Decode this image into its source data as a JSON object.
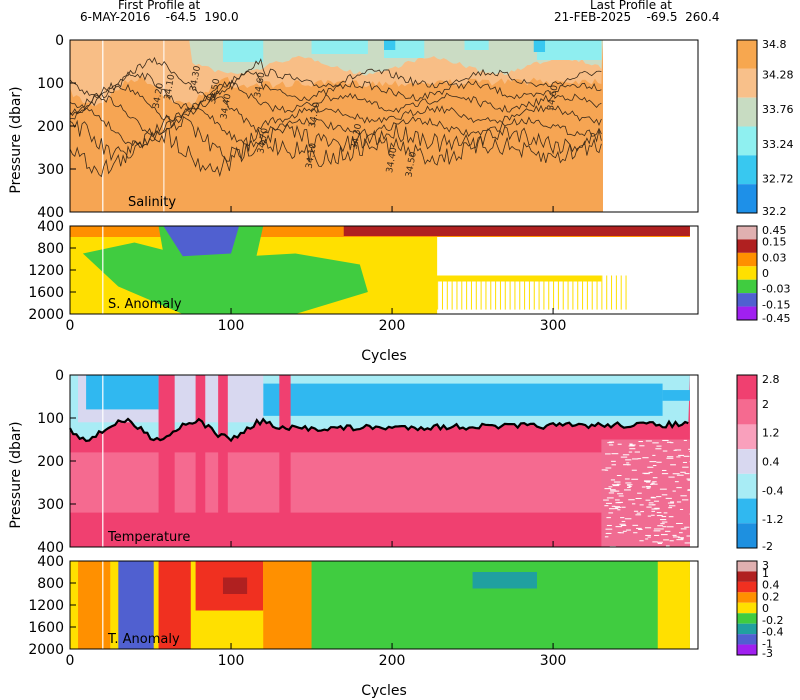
{
  "header": {
    "first_label": "First Profile at",
    "first_line": "6-MAY-2016    -64.5  190.0",
    "last_label": "Last Profile at",
    "last_line": "21-FEB-2025    -69.5  260.4"
  },
  "chart_data": [
    {
      "type": "heatmap",
      "panel": "Salinity",
      "inner_label": "Salinity",
      "ylabel": "Pressure (dbar)",
      "yticks": [
        0,
        100,
        200,
        300,
        400
      ],
      "ylim": [
        0,
        400
      ],
      "x_last_cycle": 331,
      "contour_labels": [
        "34.10",
        "34.20",
        "34.30",
        "34.40",
        "34.50",
        "34.60",
        "34.70"
      ],
      "colorbar": {
        "labels": [
          "34.8",
          "34.28",
          "33.76",
          "33.24",
          "32.72",
          "32.2"
        ],
        "colors": [
          "#f7a74f",
          "#f8c08a",
          "#c8dcc2",
          "#8ff0f0",
          "#38c8f0",
          "#1e90e8"
        ]
      }
    },
    {
      "type": "heatmap",
      "panel": "Salinity Anomaly",
      "inner_label": "S. Anomaly",
      "yticks": [
        400,
        800,
        1200,
        1600,
        2000
      ],
      "ylim": [
        400,
        2000
      ],
      "colorbar": {
        "labels": [
          "0.45",
          "0.15",
          "0.03",
          "0",
          "-0.03",
          "-0.15",
          "-0.45"
        ],
        "colors": [
          "#e0b0b0",
          "#b02020",
          "#ff9000",
          "#ffe000",
          "#40cc40",
          "#5060d0",
          "#a020f0"
        ]
      }
    },
    {
      "type": "heatmap",
      "panel": "Temperature",
      "inner_label": "Temperature",
      "ylabel": "Pressure (dbar)",
      "yticks": [
        0,
        100,
        200,
        300,
        400
      ],
      "ylim": [
        0,
        400
      ],
      "x_last_cycle": 385,
      "colorbar": {
        "labels": [
          "2.8",
          "2",
          "1.2",
          "0.4",
          "-0.4",
          "-1.2",
          "-2"
        ],
        "colors": [
          "#f04070",
          "#f56a90",
          "#f9a0bc",
          "#d8d8f0",
          "#a8ecf5",
          "#30b8f0",
          "#1e90e0"
        ]
      }
    },
    {
      "type": "heatmap",
      "panel": "Temperature Anomaly",
      "inner_label": "T. Anomaly",
      "xlabel": "Cycles",
      "yticks": [
        400,
        800,
        1200,
        1600,
        2000
      ],
      "ylim": [
        400,
        2000
      ],
      "colorbar": {
        "labels": [
          "3",
          "1",
          "0.4",
          "0.2",
          "0",
          "-0.2",
          "-0.4",
          "-1",
          "-3"
        ],
        "colors": [
          "#e0b0b0",
          "#b02020",
          "#f03020",
          "#ff9000",
          "#ffe000",
          "#40cc40",
          "#20a0a0",
          "#5060d0",
          "#a020f0"
        ]
      }
    }
  ],
  "axes": {
    "top_xlabel": "Cycles",
    "bottom_xlabel": "Cycles",
    "xticks": [
      0,
      100,
      200,
      300
    ],
    "xlim": [
      0,
      390
    ]
  }
}
